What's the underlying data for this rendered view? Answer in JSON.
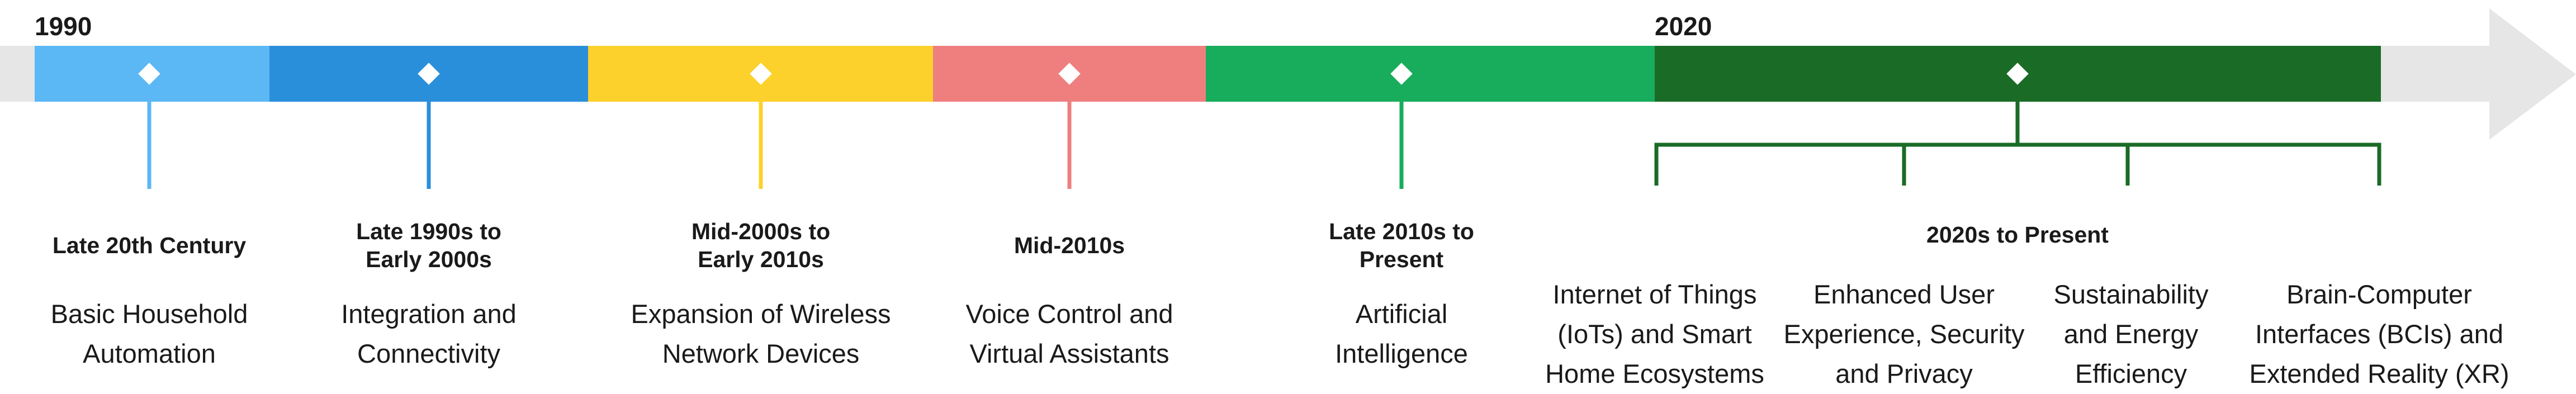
{
  "timeline": {
    "start_label": "1990",
    "mid_label": "2020",
    "eras": [
      {
        "period": "Late 20th Century",
        "description": "Basic Household Automation"
      },
      {
        "period": "Late 1990s to Early 2000s",
        "description": "Integration and Connectivity"
      },
      {
        "period": "Mid-2000s to Early 2010s",
        "description": "Expansion of Wireless Network Devices"
      },
      {
        "period": "Mid-2010s",
        "description": "Voice Control and Virtual Assistants"
      },
      {
        "period": "Late 2010s to Present",
        "description": "Artificial Intelligence"
      }
    ],
    "present": {
      "period": "2020s to Present",
      "items": [
        "Internet of Things (IoTs) and Smart Home Ecosystems",
        "Enhanced User Experience, Security and Privacy",
        "Sustainability and Energy Efficiency",
        "Brain-Computer Interfaces (BCIs) and Extended Reality (XR)"
      ]
    }
  }
}
